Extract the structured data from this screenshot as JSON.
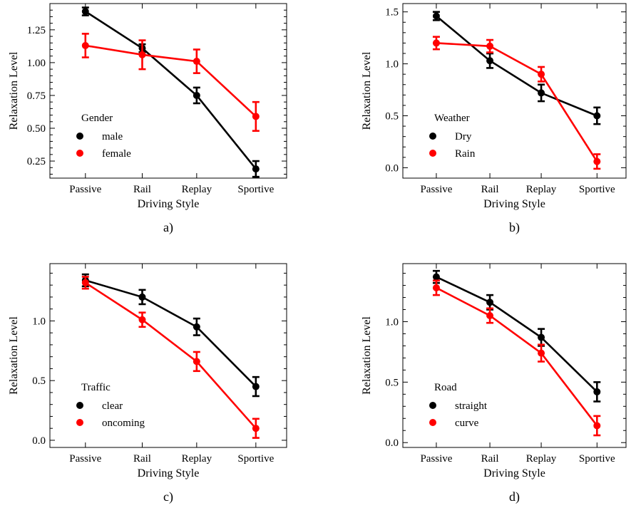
{
  "chart_data": [
    {
      "type": "line",
      "panel_label": "a)",
      "xlabel": "Driving Style",
      "ylabel": "Relaxation Level",
      "categories": [
        "Passive",
        "Rail",
        "Replay",
        "Sportive"
      ],
      "ylim": [
        0.12,
        1.45
      ],
      "yticks": [
        0.25,
        0.5,
        0.75,
        1.0,
        1.25
      ],
      "ytick_labels": [
        "0.25",
        "0.50",
        "0.75",
        "1.00",
        "1.25"
      ],
      "legend_title": "Gender",
      "legend_position": "lower-left",
      "grid": false,
      "series": [
        {
          "name": "male",
          "color": "#000000",
          "values": [
            1.39,
            1.11,
            0.75,
            0.19
          ],
          "err": [
            0.03,
            0.03,
            0.06,
            0.06
          ]
        },
        {
          "name": "female",
          "color": "#ff0000",
          "values": [
            1.13,
            1.06,
            1.01,
            0.59
          ],
          "err": [
            0.09,
            0.11,
            0.09,
            0.11
          ]
        }
      ]
    },
    {
      "type": "line",
      "panel_label": "b)",
      "xlabel": "Driving Style",
      "ylabel": "Relaxation Level",
      "categories": [
        "Passive",
        "Rail",
        "Replay",
        "Sportive"
      ],
      "ylim": [
        -0.1,
        1.58
      ],
      "yticks": [
        0.0,
        0.5,
        1.0,
        1.5
      ],
      "ytick_labels": [
        "0.0",
        "0.5",
        "1.0",
        "1.5"
      ],
      "legend_title": "Weather",
      "legend_position": "lower-left",
      "grid": false,
      "series": [
        {
          "name": "Dry",
          "color": "#000000",
          "values": [
            1.46,
            1.03,
            0.72,
            0.5
          ],
          "err": [
            0.04,
            0.07,
            0.08,
            0.08
          ]
        },
        {
          "name": "Rain",
          "color": "#ff0000",
          "values": [
            1.2,
            1.17,
            0.9,
            0.06
          ],
          "err": [
            0.06,
            0.06,
            0.07,
            0.07
          ]
        }
      ]
    },
    {
      "type": "line",
      "panel_label": "c)",
      "xlabel": "Driving Style",
      "ylabel": "Relaxation Level",
      "categories": [
        "Passive",
        "Rail",
        "Replay",
        "Sportive"
      ],
      "ylim": [
        -0.06,
        1.48
      ],
      "yticks": [
        0.0,
        0.5,
        1.0
      ],
      "ytick_labels": [
        "0.0",
        "0.5",
        "1.0"
      ],
      "legend_title": "Traffic",
      "legend_position": "lower-left",
      "grid": false,
      "series": [
        {
          "name": "clear",
          "color": "#000000",
          "values": [
            1.34,
            1.2,
            0.95,
            0.45
          ],
          "err": [
            0.05,
            0.06,
            0.07,
            0.08
          ]
        },
        {
          "name": "oncoming",
          "color": "#ff0000",
          "values": [
            1.32,
            1.01,
            0.66,
            0.1
          ],
          "err": [
            0.05,
            0.06,
            0.08,
            0.08
          ]
        }
      ]
    },
    {
      "type": "line",
      "panel_label": "d)",
      "xlabel": "Driving Style",
      "ylabel": "Relaxation Level",
      "categories": [
        "Passive",
        "Rail",
        "Replay",
        "Sportive"
      ],
      "ylim": [
        -0.04,
        1.48
      ],
      "yticks": [
        0.0,
        0.5,
        1.0
      ],
      "ytick_labels": [
        "0.0",
        "0.5",
        "1.0"
      ],
      "legend_title": "Road",
      "legend_position": "lower-left",
      "grid": false,
      "series": [
        {
          "name": "straight",
          "color": "#000000",
          "values": [
            1.37,
            1.16,
            0.87,
            0.42
          ],
          "err": [
            0.05,
            0.06,
            0.07,
            0.08
          ]
        },
        {
          "name": "curve",
          "color": "#ff0000",
          "values": [
            1.28,
            1.05,
            0.74,
            0.14
          ],
          "err": [
            0.06,
            0.06,
            0.07,
            0.08
          ]
        }
      ]
    }
  ]
}
